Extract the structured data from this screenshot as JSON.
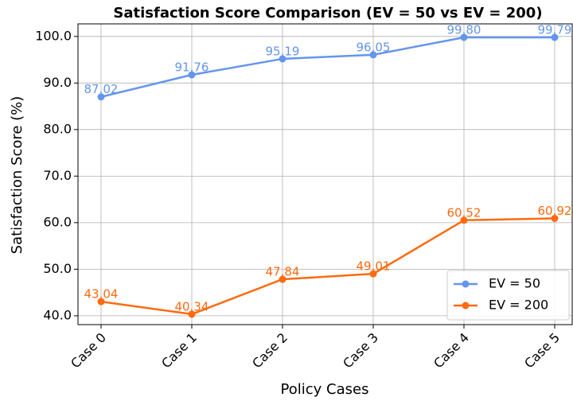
{
  "chart_data": {
    "type": "line",
    "title": "Satisfaction Score Comparison (EV = 50 vs EV = 200)",
    "x_label": "Policy Cases",
    "y_label": "Satisfaction Score (%)",
    "categories": [
      "Case 0",
      "Case 1",
      "Case 2",
      "Case 3",
      "Case 4",
      "Case 5"
    ],
    "series": [
      {
        "name": "EV = 50",
        "color": "#6495ed",
        "values": [
          87.02,
          91.76,
          95.19,
          96.05,
          99.8,
          99.79
        ],
        "value_labels": [
          "87.02",
          "91.76",
          "95.19",
          "96.05",
          "99.80",
          "99.79"
        ]
      },
      {
        "name": "EV = 200",
        "color": "#ff6a0f",
        "values": [
          43.04,
          40.34,
          47.84,
          49.01,
          60.52,
          60.92
        ],
        "value_labels": [
          "43.04",
          "40.34",
          "47.84",
          "49.01",
          "60.52",
          "60.92"
        ]
      }
    ],
    "ylim": [
      38.1,
      102.7
    ],
    "yticks": [
      {
        "value": 40,
        "label": "40.0"
      },
      {
        "value": 50,
        "label": "50.0"
      },
      {
        "value": 60,
        "label": "60.0"
      },
      {
        "value": 70,
        "label": "70.0"
      },
      {
        "value": 80,
        "label": "80.0"
      },
      {
        "value": 90,
        "label": "90.0"
      },
      {
        "value": 100,
        "label": "100.0"
      }
    ],
    "grid": true,
    "legend": "lower right"
  }
}
